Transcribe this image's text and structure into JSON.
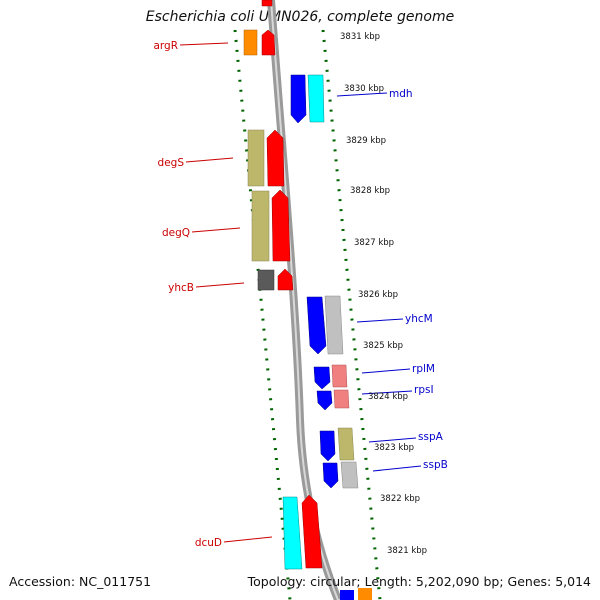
{
  "title": "Escherichia coli UMN026, complete genome",
  "footer": {
    "accession": "Accession: NC_011751",
    "stats": "Topology: circular; Length: 5,202,090 bp; Genes: 5,014"
  },
  "scale_labels": [
    "3831 kbp",
    "3830 kbp",
    "3829 kbp",
    "3828 kbp",
    "3827 kbp",
    "3826 kbp",
    "3825 kbp",
    "3824 kbp",
    "3823 kbp",
    "3822 kbp",
    "3821 kbp"
  ],
  "genes_left": [
    "argR",
    "degS",
    "degQ",
    "yhcB",
    "dcuD"
  ],
  "genes_right": [
    "mdh",
    "yhcM",
    "rplM",
    "rpsI",
    "sspA",
    "sspB"
  ],
  "colors": {
    "red": "#ff0000",
    "blue": "#0000ff",
    "orange": "#ff8c00",
    "cyan": "#00ffff",
    "khaki": "#bdb76b",
    "darkgray": "#5a5a5a",
    "silver": "#c0c0c0",
    "pink": "#f08080",
    "label_left": "#cc0000",
    "label_right": "#0000cc",
    "tick": "#006400"
  }
}
